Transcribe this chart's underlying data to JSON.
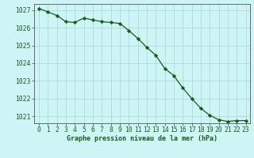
{
  "x": [
    0,
    1,
    2,
    3,
    4,
    5,
    6,
    7,
    8,
    9,
    10,
    11,
    12,
    13,
    14,
    15,
    16,
    17,
    18,
    19,
    20,
    21,
    22,
    23
  ],
  "y": [
    1027.1,
    1026.9,
    1026.7,
    1026.35,
    1026.3,
    1026.55,
    1026.45,
    1026.35,
    1026.3,
    1026.25,
    1025.85,
    1025.4,
    1024.9,
    1024.45,
    1023.7,
    1023.3,
    1022.6,
    1022.0,
    1021.45,
    1021.05,
    1020.8,
    1020.7,
    1020.75,
    1020.75
  ],
  "line_color": "#1a5c1a",
  "marker": "D",
  "marker_size": 2.2,
  "bg_color": "#cef5f5",
  "grid_color": "#aad4d4",
  "ylim_min": 1020.6,
  "ylim_max": 1027.35,
  "yticks": [
    1021,
    1022,
    1023,
    1024,
    1025,
    1026,
    1027
  ],
  "xticks": [
    0,
    1,
    2,
    3,
    4,
    5,
    6,
    7,
    8,
    9,
    10,
    11,
    12,
    13,
    14,
    15,
    16,
    17,
    18,
    19,
    20,
    21,
    22,
    23
  ],
  "xlabel": "Graphe pression niveau de la mer (hPa)",
  "xlabel_color": "#1a5c1a",
  "tick_color": "#1a5c1a",
  "axis_color": "#555555",
  "label_fontsize": 6.0,
  "tick_fontsize": 5.8,
  "linewidth": 0.9
}
